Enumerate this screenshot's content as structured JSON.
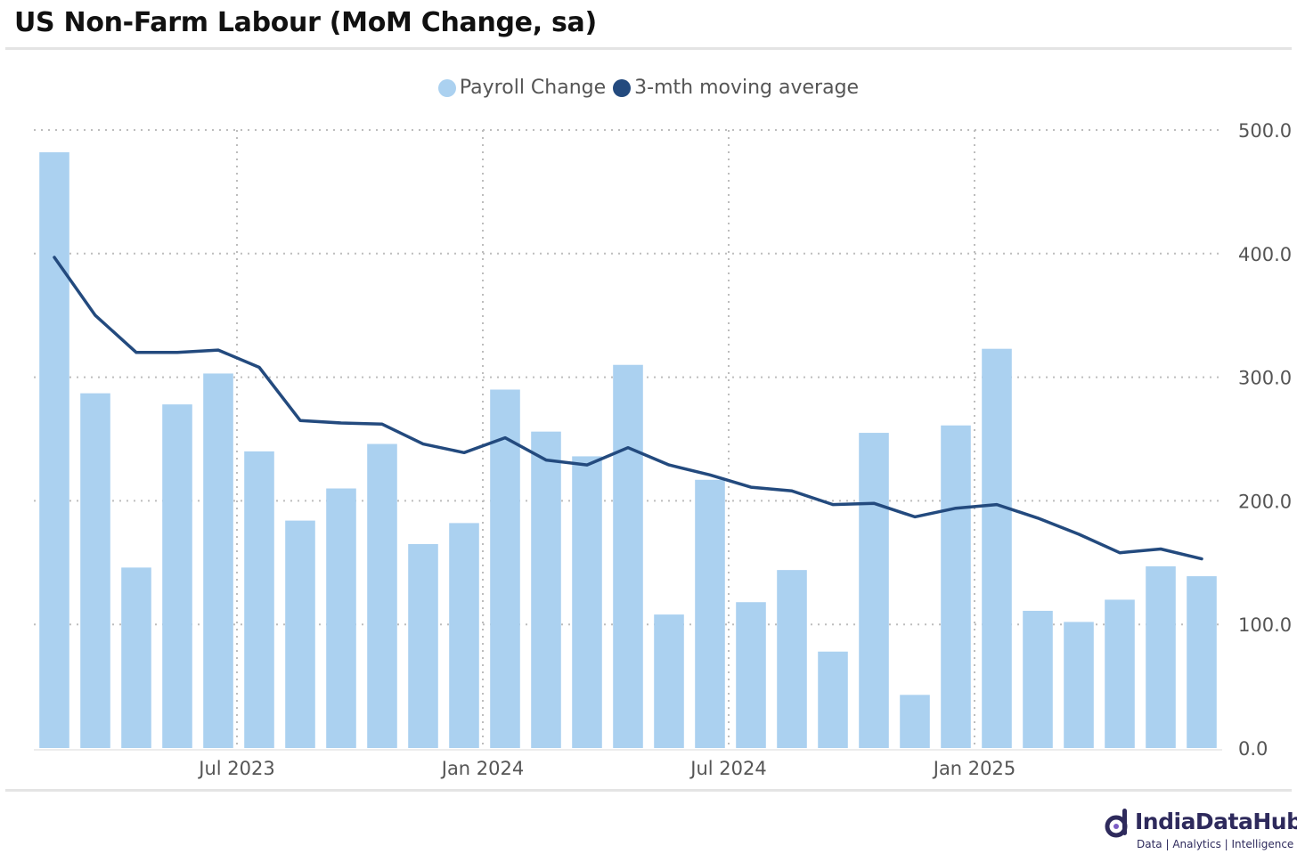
{
  "title": "US Non-Farm Labour (MoM Change, sa)",
  "brand": {
    "name": "IndiaDataHub",
    "tagline": "Data | Analytics | Intelligence",
    "color": "#2e2a5c"
  },
  "colors": {
    "bar": "#abd1f0",
    "line": "#234a7e",
    "grid": "#bdbdbd",
    "tick_text": "#555555"
  },
  "chart_data": {
    "type": "bar",
    "legend_position": "top-center",
    "grid": true,
    "y_axis_position": "right",
    "ylim": [
      0,
      500
    ],
    "y_ticks": [
      0,
      100,
      200,
      300,
      400,
      500
    ],
    "y_tick_labels": [
      "0.0",
      "100.0",
      "200.0",
      "300.0",
      "400.0",
      "500.0"
    ],
    "x_tick_labels": [
      {
        "label": "Jul 2023",
        "month": "2023-07"
      },
      {
        "label": "Jan 2024",
        "month": "2024-01"
      },
      {
        "label": "Jul 2024",
        "month": "2024-07"
      },
      {
        "label": "Jan 2025",
        "month": "2025-01"
      }
    ],
    "categories": [
      "2023-02",
      "2023-03",
      "2023-04",
      "2023-05",
      "2023-06",
      "2023-07",
      "2023-08",
      "2023-09",
      "2023-10",
      "2023-11",
      "2023-12",
      "2024-01",
      "2024-02",
      "2024-03",
      "2024-04",
      "2024-05",
      "2024-06",
      "2024-07",
      "2024-08",
      "2024-09",
      "2024-10",
      "2024-11",
      "2024-12",
      "2025-01",
      "2025-02",
      "2025-03",
      "2025-04",
      "2025-05",
      "2025-06"
    ],
    "series": [
      {
        "name": "Payroll Change",
        "type": "bar",
        "values": [
          482,
          287,
          146,
          278,
          303,
          240,
          184,
          210,
          246,
          165,
          182,
          290,
          256,
          236,
          310,
          108,
          217,
          118,
          144,
          78,
          255,
          43,
          261,
          323,
          111,
          102,
          120,
          147,
          139
        ]
      },
      {
        "name": "3-mth moving average",
        "type": "line",
        "values": [
          397,
          350,
          320,
          320,
          322,
          308,
          265,
          263,
          262,
          246,
          239,
          251,
          233,
          229,
          243,
          229,
          221,
          211,
          208,
          197,
          198,
          187,
          194,
          197,
          186,
          173,
          158,
          161,
          153
        ]
      }
    ]
  }
}
